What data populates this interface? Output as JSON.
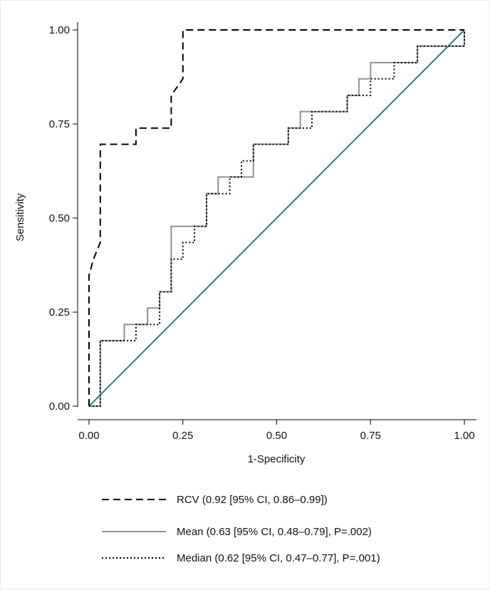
{
  "chart_data": {
    "type": "line",
    "xlabel": "1-Specificity",
    "ylabel": "Sensitivity",
    "xlim": [
      0,
      1
    ],
    "ylim": [
      0,
      1
    ],
    "xticks": [
      "0.00",
      "0.25",
      "0.50",
      "0.75",
      "1.00"
    ],
    "yticks": [
      "0.00",
      "0.25",
      "0.50",
      "0.75",
      "1.00"
    ],
    "grid": false,
    "legend_position": "bottom",
    "series": [
      {
        "name": "RCV (0.92 [95% CI, 0.86–0.99])",
        "style": "dashed",
        "color": "#000000",
        "points": [
          [
            0,
            0
          ],
          [
            0,
            0.348
          ],
          [
            0.012,
            0.391
          ],
          [
            0.03,
            0.435
          ],
          [
            0.03,
            0.696
          ],
          [
            0.125,
            0.696
          ],
          [
            0.125,
            0.739
          ],
          [
            0.219,
            0.739
          ],
          [
            0.219,
            0.826
          ],
          [
            0.25,
            0.87
          ],
          [
            0.25,
            1.0
          ],
          [
            1.0,
            1.0
          ]
        ]
      },
      {
        "name": "Mean (0.63 [95% CI, 0.48–0.79], P=.002)",
        "style": "solid",
        "color": "#909090",
        "points": [
          [
            0,
            0
          ],
          [
            0.03,
            0
          ],
          [
            0.03,
            0.174
          ],
          [
            0.094,
            0.174
          ],
          [
            0.094,
            0.217
          ],
          [
            0.156,
            0.217
          ],
          [
            0.156,
            0.261
          ],
          [
            0.188,
            0.261
          ],
          [
            0.188,
            0.304
          ],
          [
            0.219,
            0.304
          ],
          [
            0.219,
            0.478
          ],
          [
            0.313,
            0.478
          ],
          [
            0.313,
            0.565
          ],
          [
            0.344,
            0.565
          ],
          [
            0.344,
            0.609
          ],
          [
            0.438,
            0.609
          ],
          [
            0.438,
            0.696
          ],
          [
            0.531,
            0.696
          ],
          [
            0.531,
            0.739
          ],
          [
            0.563,
            0.739
          ],
          [
            0.563,
            0.783
          ],
          [
            0.688,
            0.783
          ],
          [
            0.688,
            0.826
          ],
          [
            0.719,
            0.826
          ],
          [
            0.719,
            0.87
          ],
          [
            0.75,
            0.87
          ],
          [
            0.75,
            0.913
          ],
          [
            0.875,
            0.913
          ],
          [
            0.875,
            0.957
          ],
          [
            1.0,
            0.957
          ],
          [
            1.0,
            1.0
          ]
        ]
      },
      {
        "name": "Median (0.62 [95% CI, 0.47–0.77], P=.001)",
        "style": "dotted",
        "color": "#000000",
        "points": [
          [
            0,
            0
          ],
          [
            0.03,
            0
          ],
          [
            0.03,
            0.174
          ],
          [
            0.125,
            0.174
          ],
          [
            0.125,
            0.217
          ],
          [
            0.188,
            0.217
          ],
          [
            0.188,
            0.304
          ],
          [
            0.219,
            0.304
          ],
          [
            0.219,
            0.391
          ],
          [
            0.25,
            0.391
          ],
          [
            0.25,
            0.435
          ],
          [
            0.281,
            0.435
          ],
          [
            0.281,
            0.478
          ],
          [
            0.313,
            0.478
          ],
          [
            0.313,
            0.565
          ],
          [
            0.375,
            0.565
          ],
          [
            0.375,
            0.609
          ],
          [
            0.406,
            0.609
          ],
          [
            0.406,
            0.652
          ],
          [
            0.438,
            0.652
          ],
          [
            0.438,
            0.696
          ],
          [
            0.531,
            0.696
          ],
          [
            0.531,
            0.739
          ],
          [
            0.594,
            0.739
          ],
          [
            0.594,
            0.783
          ],
          [
            0.688,
            0.783
          ],
          [
            0.688,
            0.826
          ],
          [
            0.75,
            0.826
          ],
          [
            0.75,
            0.87
          ],
          [
            0.813,
            0.87
          ],
          [
            0.813,
            0.913
          ],
          [
            0.875,
            0.913
          ],
          [
            0.875,
            0.957
          ],
          [
            1.0,
            0.957
          ],
          [
            1.0,
            1.0
          ]
        ]
      },
      {
        "name": "",
        "style": "solid",
        "color": "#2e7d76",
        "points": [
          [
            0,
            0
          ],
          [
            1,
            1
          ]
        ]
      }
    ]
  }
}
